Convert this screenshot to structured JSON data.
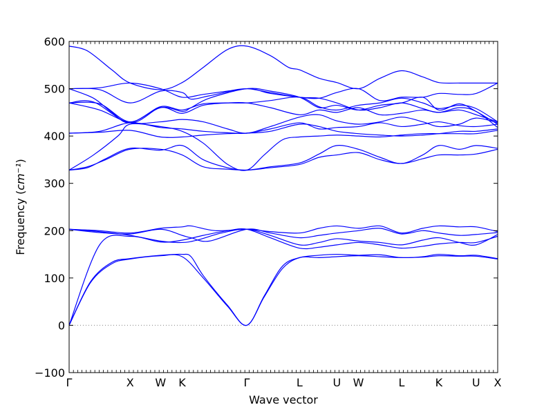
{
  "chart_data": {
    "type": "line",
    "title": "",
    "xlabel": "Wave vector",
    "ylabel": "Frequency",
    "ylabel_unit": "cm⁻¹",
    "ylim": [
      -100,
      600
    ],
    "yticks": [
      -100,
      0,
      100,
      200,
      300,
      400,
      500,
      600
    ],
    "grid": false,
    "legend": "none",
    "color": "#0000ff",
    "zero_line": {
      "y": 0,
      "style": "dotted",
      "color": "#808080"
    },
    "kpath": [
      {
        "label": "Γ",
        "x": 0.0
      },
      {
        "label": "X",
        "x": 1.0
      },
      {
        "label": "W",
        "x": 1.5
      },
      {
        "label": "K",
        "x": 1.854
      },
      {
        "label": "Γ",
        "x": 2.914
      },
      {
        "label": "L",
        "x": 3.78
      },
      {
        "label": "U",
        "x": 4.392
      },
      {
        "label": "W",
        "x": 4.746
      },
      {
        "label": "L",
        "x": 5.453
      },
      {
        "label": "K",
        "x": 6.065
      },
      {
        "label": "U",
        "x": 6.676
      },
      {
        "label": "X",
        "x": 7.03
      }
    ],
    "series": [
      {
        "x": [
          0,
          0.35,
          0.7,
          1.0,
          1.5,
          1.854,
          2.2,
          2.6,
          2.914,
          3.2,
          3.5,
          3.78,
          4.1,
          4.392,
          4.746,
          5.1,
          5.453,
          5.8,
          6.065,
          6.4,
          6.676,
          7.03
        ],
        "values": [
          0,
          90,
          130,
          140,
          147,
          145,
          100,
          40,
          0,
          60,
          120,
          143,
          143,
          145,
          147,
          145,
          143,
          144,
          147,
          146,
          146,
          140
        ]
      },
      {
        "x": [
          0,
          0.35,
          0.7,
          1.0,
          1.5,
          1.854,
          2.0,
          2.2,
          2.6,
          2.914,
          3.2,
          3.5,
          3.78,
          4.1,
          4.392,
          4.746,
          5.1,
          5.453,
          5.8,
          6.065,
          6.4,
          6.676,
          7.03
        ],
        "values": [
          0,
          92,
          133,
          141,
          148,
          150,
          145,
          105,
          42,
          0,
          62,
          125,
          143,
          148,
          150,
          148,
          149,
          143,
          145,
          150,
          147,
          148,
          141
        ]
      },
      {
        "x": [
          0,
          0.5,
          1.0,
          1.5,
          1.854,
          2.2,
          2.6,
          2.914,
          3.3,
          3.78,
          4.1,
          4.392,
          4.746,
          5.1,
          5.453,
          5.8,
          6.065,
          6.4,
          6.676,
          7.03
        ],
        "values": [
          0,
          170,
          188,
          176,
          180,
          190,
          200,
          203,
          185,
          163,
          165,
          170,
          175,
          170,
          163,
          167,
          172,
          175,
          175,
          188
        ]
      },
      {
        "x": [
          0,
          0.5,
          1.0,
          1.5,
          1.854,
          2.1,
          2.5,
          2.914,
          3.3,
          3.78,
          4.1,
          4.392,
          4.746,
          5.1,
          5.453,
          5.8,
          6.065,
          6.4,
          6.676,
          7.03
        ],
        "values": [
          203,
          198,
          190,
          178,
          175,
          180,
          195,
          203,
          190,
          170,
          175,
          183,
          178,
          175,
          170,
          180,
          185,
          175,
          170,
          192
        ]
      },
      {
        "x": [
          0,
          0.5,
          1.0,
          1.5,
          1.854,
          2.0,
          2.3,
          2.914,
          3.3,
          3.78,
          4.1,
          4.392,
          4.746,
          5.1,
          5.453,
          5.8,
          6.065,
          6.4,
          6.676,
          7.03
        ],
        "values": [
          203,
          196,
          193,
          203,
          190,
          185,
          178,
          203,
          195,
          185,
          190,
          195,
          200,
          205,
          193,
          200,
          195,
          190,
          192,
          196
        ]
      },
      {
        "x": [
          0,
          0.5,
          1.0,
          1.5,
          1.854,
          2.0,
          2.4,
          2.914,
          3.3,
          3.78,
          4.1,
          4.392,
          4.746,
          5.1,
          5.453,
          5.8,
          6.065,
          6.4,
          6.676,
          7.03
        ],
        "values": [
          203,
          200,
          195,
          205,
          208,
          210,
          200,
          203,
          198,
          195,
          205,
          210,
          205,
          210,
          195,
          205,
          210,
          208,
          208,
          198
        ]
      },
      {
        "x": [
          0,
          0.3,
          0.6,
          1.0,
          1.5,
          1.854,
          2.2,
          2.6,
          2.914,
          3.3,
          3.78,
          4.1,
          4.392,
          4.746,
          5.1,
          5.453,
          5.8,
          6.065,
          6.4,
          6.676,
          7.03
        ],
        "values": [
          328,
          335,
          350,
          372,
          372,
          360,
          335,
          330,
          328,
          333,
          340,
          355,
          360,
          365,
          350,
          342,
          352,
          360,
          360,
          362,
          372
        ]
      },
      {
        "x": [
          0,
          0.3,
          0.6,
          1.0,
          1.5,
          1.854,
          2.2,
          2.6,
          2.914,
          3.3,
          3.78,
          4.1,
          4.392,
          4.746,
          5.1,
          5.453,
          5.8,
          6.065,
          6.4,
          6.676,
          7.03
        ],
        "values": [
          328,
          333,
          352,
          374,
          370,
          380,
          350,
          333,
          328,
          335,
          343,
          362,
          380,
          372,
          355,
          342,
          360,
          380,
          372,
          380,
          374
        ]
      },
      {
        "x": [
          0,
          0.4,
          0.8,
          1.0,
          1.5,
          1.854,
          2.2,
          2.6,
          2.914,
          3.2,
          3.5,
          3.78,
          4.1,
          4.392,
          4.746,
          5.1,
          5.453,
          5.8,
          6.065,
          6.4,
          6.676,
          7.03
        ],
        "values": [
          328,
          360,
          400,
          425,
          420,
          410,
          385,
          340,
          328,
          360,
          392,
          398,
          400,
          402,
          400,
          398,
          402,
          405,
          405,
          405,
          405,
          412
        ]
      },
      {
        "x": [
          0,
          0.5,
          1.0,
          1.5,
          1.854,
          2.2,
          2.6,
          2.914,
          3.3,
          3.78,
          4.1,
          4.392,
          4.746,
          5.1,
          5.453,
          5.8,
          6.065,
          6.4,
          6.676,
          7.03
        ],
        "values": [
          406,
          408,
          412,
          398,
          398,
          402,
          405,
          406,
          410,
          425,
          420,
          410,
          405,
          402,
          400,
          402,
          405,
          410,
          410,
          415
        ]
      },
      {
        "x": [
          0,
          0.5,
          1.0,
          1.5,
          1.854,
          2.2,
          2.6,
          2.914,
          3.3,
          3.78,
          4.1,
          4.392,
          4.746,
          5.1,
          5.453,
          5.8,
          6.065,
          6.4,
          6.676,
          7.03
        ],
        "values": [
          406,
          410,
          428,
          418,
          415,
          410,
          407,
          406,
          415,
          428,
          415,
          418,
          420,
          428,
          420,
          425,
          430,
          422,
          420,
          425
        ]
      },
      {
        "x": [
          0,
          0.5,
          1.0,
          1.5,
          1.854,
          2.2,
          2.6,
          2.914,
          3.3,
          3.78,
          4.1,
          4.392,
          4.746,
          5.1,
          5.453,
          5.8,
          6.065,
          6.4,
          6.676,
          7.03
        ],
        "values": [
          470,
          455,
          428,
          430,
          435,
          430,
          415,
          406,
          420,
          440,
          445,
          432,
          425,
          430,
          440,
          430,
          420,
          425,
          438,
          428
        ]
      },
      {
        "x": [
          0,
          0.4,
          1.0,
          1.5,
          1.854,
          2.2,
          2.6,
          2.914,
          3.3,
          3.78,
          4.1,
          4.392,
          4.746,
          5.1,
          5.453,
          5.8,
          6.065,
          6.4,
          6.676,
          7.03
        ],
        "values": [
          470,
          472,
          428,
          460,
          448,
          465,
          470,
          470,
          460,
          445,
          455,
          450,
          460,
          445,
          448,
          455,
          450,
          455,
          445,
          430
        ]
      },
      {
        "x": [
          0,
          0.5,
          1.0,
          1.5,
          1.854,
          2.2,
          2.6,
          2.914,
          3.3,
          3.78,
          4.1,
          4.392,
          4.746,
          5.1,
          5.453,
          5.8,
          6.065,
          6.4,
          6.676,
          7.03
        ],
        "values": [
          470,
          468,
          430,
          462,
          455,
          468,
          470,
          470,
          475,
          482,
          462,
          455,
          465,
          470,
          480,
          470,
          458,
          465,
          458,
          430
        ]
      },
      {
        "x": [
          0,
          0.4,
          0.7,
          1.0,
          1.5,
          1.854,
          2.0,
          2.3,
          2.914,
          3.3,
          3.78,
          4.1,
          4.392,
          4.746,
          5.1,
          5.453,
          5.8,
          6.065,
          6.4,
          6.676,
          7.03
        ],
        "values": [
          500,
          480,
          450,
          428,
          460,
          452,
          460,
          480,
          500,
          495,
          482,
          460,
          465,
          455,
          465,
          470,
          482,
          455,
          468,
          452,
          425
        ]
      },
      {
        "x": [
          0,
          0.5,
          1.0,
          1.5,
          1.854,
          2.0,
          2.3,
          2.914,
          3.3,
          3.78,
          4.1,
          4.392,
          4.746,
          5.1,
          5.453,
          5.8,
          6.065,
          6.4,
          6.676,
          7.03
        ],
        "values": [
          500,
          498,
          470,
          495,
          492,
          478,
          485,
          500,
          490,
          482,
          480,
          492,
          500,
          475,
          482,
          482,
          490,
          488,
          490,
          512
        ]
      },
      {
        "x": [
          0,
          0.5,
          1.0,
          1.5,
          1.854,
          2.2,
          2.6,
          2.914,
          3.3,
          3.78,
          4.1,
          4.392,
          4.746,
          5.1,
          5.453,
          5.8,
          6.065,
          6.4,
          6.676,
          7.03
        ],
        "values": [
          500,
          502,
          512,
          500,
          482,
          488,
          495,
          500,
          492,
          482,
          480,
          470,
          455,
          460,
          470,
          458,
          450,
          460,
          452,
          418
        ]
      },
      {
        "x": [
          0,
          0.3,
          0.7,
          1.0,
          1.5,
          1.854,
          2.2,
          2.6,
          2.914,
          3.3,
          3.6,
          3.78,
          4.1,
          4.392,
          4.746,
          5.1,
          5.453,
          5.8,
          6.065,
          6.4,
          6.676,
          7.03
        ],
        "values": [
          590,
          580,
          540,
          512,
          498,
          513,
          545,
          583,
          590,
          570,
          545,
          540,
          522,
          513,
          500,
          522,
          538,
          525,
          513,
          512,
          512,
          512
        ]
      }
    ]
  }
}
